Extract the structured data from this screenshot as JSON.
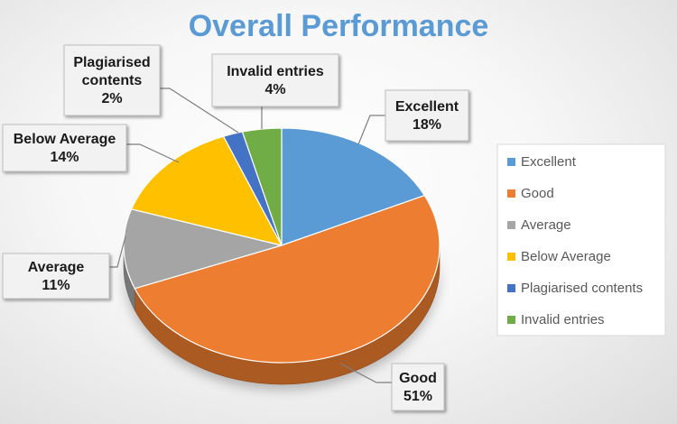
{
  "chart_data": {
    "type": "pie",
    "title": "Overall Performance",
    "categories": [
      "Excellent",
      "Good",
      "Average",
      "Below Average",
      "Plagiarised contents",
      "Invalid entries"
    ],
    "values": [
      18,
      51,
      11,
      14,
      2,
      4
    ],
    "value_labels": [
      "18%",
      "51%",
      "11%",
      "14%",
      "2%",
      "4%"
    ],
    "colors": [
      "#5b9bd5",
      "#ed7d31",
      "#a5a5a5",
      "#ffc000",
      "#4472c4",
      "#70ad47"
    ],
    "legend": {
      "position": "right",
      "entries": [
        "Excellent",
        "Good",
        "Average",
        "Below Average",
        "Plagiarised contents",
        "Invalid entries"
      ]
    },
    "style": "3d-perspective",
    "start_direction": "top",
    "direction": "clockwise"
  }
}
